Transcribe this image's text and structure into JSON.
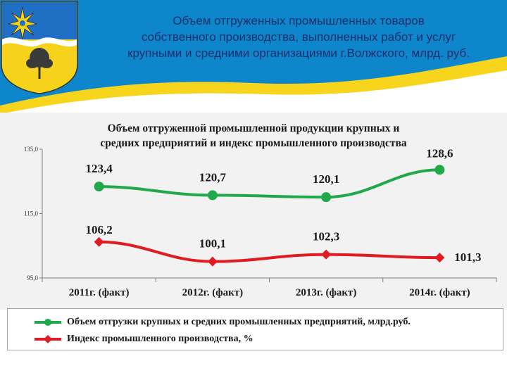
{
  "slide": {
    "title_lines": [
      "Объем отгруженных  промышленных товаров",
      "собственного производства, выполненных работ и услуг",
      "крупными и средними организациями г.Волжского, млрд. руб."
    ],
    "colors": {
      "sky": "#0d86cc",
      "band": "#f7d51d",
      "title": "#1b2f6b"
    },
    "emblem": {
      "name": "coat-of-arms-volzhsky",
      "icon": "coat-of-arms-icon"
    }
  },
  "chart_data": {
    "type": "line",
    "title_lines": [
      "Объем отгруженной промышленной продукции крупных и",
      "средних предприятий и индекс промышленного производства"
    ],
    "categories": [
      "2011г. (факт)",
      "2012г. (факт)",
      "2013г. (факт)",
      "2014г. (факт)"
    ],
    "y_ticks": [
      "135,0",
      "115,0",
      "95,0"
    ],
    "ylim": [
      95,
      135
    ],
    "grid": false,
    "legend_position": "bottom",
    "series": [
      {
        "name": "Объем отгрузки крупных и средних промышленных предприятий, млрд.руб.",
        "color": "#21a84d",
        "marker": "circle",
        "values": [
          123.4,
          120.7,
          120.1,
          128.6
        ],
        "labels": [
          "123,4",
          "120,7",
          "120,1",
          "128,6"
        ]
      },
      {
        "name": "Индекс промышленного производства, %",
        "color": "#e01b22",
        "marker": "diamond",
        "values": [
          106.2,
          100.1,
          102.3,
          101.3
        ],
        "labels": [
          "106,2",
          "100,1",
          "102,3",
          "101,3"
        ]
      }
    ]
  }
}
